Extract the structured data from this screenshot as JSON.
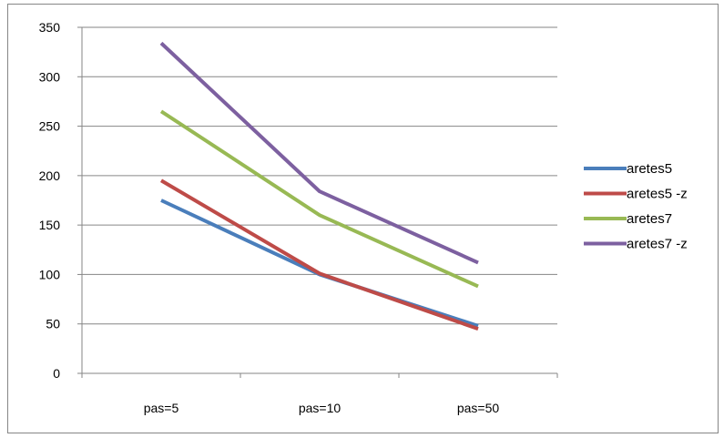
{
  "chart_data": {
    "type": "line",
    "categories": [
      "pas=5",
      "pas=10",
      "pas=50"
    ],
    "series": [
      {
        "name": "aretes5",
        "values": [
          175,
          100,
          48
        ],
        "color": "#4a7ebb"
      },
      {
        "name": "aretes5 -z",
        "values": [
          195,
          101,
          45
        ],
        "color": "#be4b48"
      },
      {
        "name": "aretes7",
        "values": [
          265,
          160,
          88
        ],
        "color": "#98b954"
      },
      {
        "name": "aretes7 -z",
        "values": [
          334,
          184,
          112
        ],
        "color": "#7d60a0"
      }
    ],
    "ylim": [
      0,
      350
    ],
    "yticks": [
      0,
      50,
      100,
      150,
      200,
      250,
      300,
      350
    ],
    "grid": true,
    "legend": "right"
  }
}
